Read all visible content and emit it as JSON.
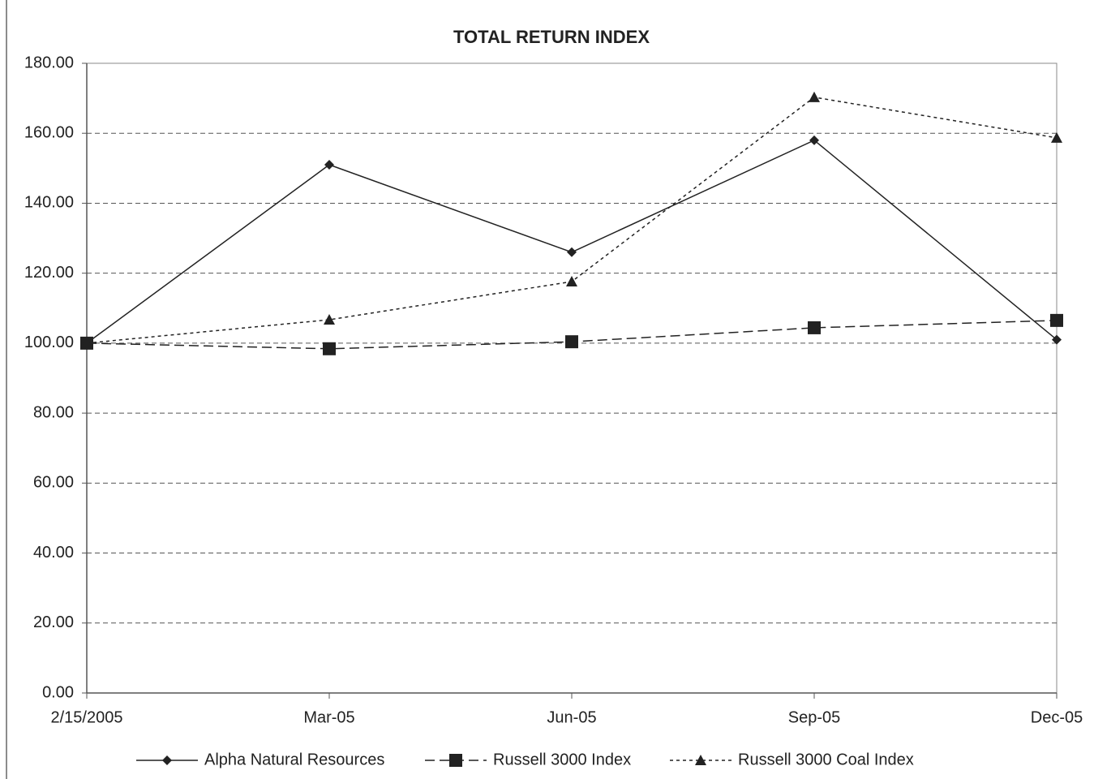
{
  "chart_data": {
    "type": "line",
    "title": "TOTAL RETURN INDEX",
    "categories": [
      "2/15/2005",
      "Mar-05",
      "Jun-05",
      "Sep-05",
      "Dec-05"
    ],
    "series": [
      {
        "name": "Alpha Natural Resources",
        "color": "#222222",
        "dash": "solid",
        "marker": "diamond",
        "values": [
          100,
          151,
          126,
          158,
          101
        ]
      },
      {
        "name": "Russell 3000 Index",
        "color": "#222222",
        "dash": "dashed",
        "marker": "square",
        "values": [
          100,
          98.4,
          100.4,
          104.4,
          106.5
        ]
      },
      {
        "name": "Russell 3000 Coal Index",
        "color": "#222222",
        "dash": "dotted",
        "marker": "triangle",
        "values": [
          100,
          106.7,
          117.6,
          170.3,
          158.7
        ]
      }
    ],
    "ylim": [
      0,
      180
    ],
    "yticks": [
      {
        "value": 0,
        "label": "0.00"
      },
      {
        "value": 20,
        "label": "20.00"
      },
      {
        "value": 40,
        "label": "40.00"
      },
      {
        "value": 60,
        "label": "60.00"
      },
      {
        "value": 80,
        "label": "80.00"
      },
      {
        "value": 100,
        "label": "100.00"
      },
      {
        "value": 120,
        "label": "120.00"
      },
      {
        "value": 140,
        "label": "140.00"
      },
      {
        "value": 160,
        "label": "160.00"
      },
      {
        "value": 180,
        "label": "180.00"
      }
    ],
    "grid": true,
    "legend": "bottom"
  }
}
